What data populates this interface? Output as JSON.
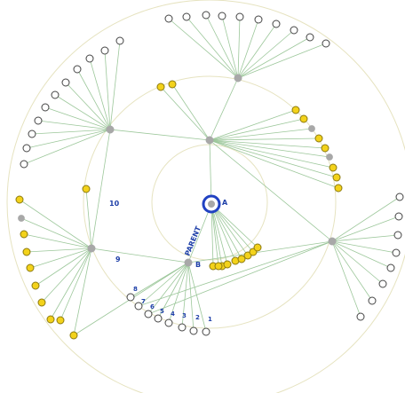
{
  "graph": {
    "labels": {
      "node_a": "A",
      "node_b": "B",
      "parent_edge": "PARENT",
      "n10": "10",
      "n9": "9",
      "seq": [
        "1",
        "2",
        "3",
        "4",
        "5",
        "6",
        "7",
        "8"
      ]
    },
    "colors": {
      "edge": "#9cc79a",
      "ring": "#e6e3c0",
      "hub": "#a8a8a8",
      "yellow_fill": "#f3d21b",
      "yellow_stroke": "#8c7a10",
      "white_fill": "#ffffff",
      "white_stroke": "#444444",
      "focus": "#2142c2",
      "label": "#1e3fa8"
    }
  }
}
